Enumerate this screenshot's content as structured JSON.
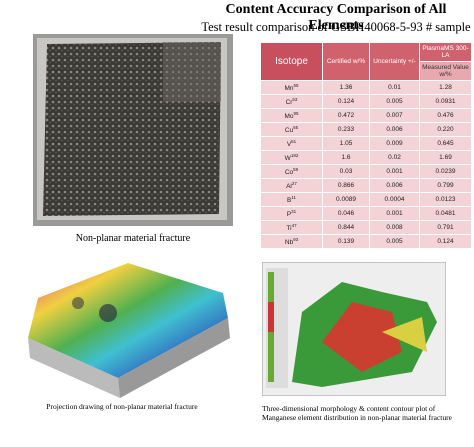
{
  "header": {
    "title": "Content Accuracy Comparison of All Elements",
    "subtitle": "Test result comparison of GSBH40068-5-93 # sample"
  },
  "figures": [
    {
      "caption": "Non-planar material fracture"
    },
    {
      "caption": "Projection drawing of non-planar material fracture"
    },
    {
      "caption": "Three-dimensional morphology & content contour plot of Manganese element distribution in non-planar material fracture"
    }
  ],
  "table": {
    "headers": {
      "isotope": "Isotope",
      "certified": "Certified w/%",
      "uncertainty": "Uncertainty +/-",
      "instrument": "PlasmaMS 300-LA",
      "measured": "Measured Value w/%"
    },
    "rows": [
      [
        "Mn",
        "55",
        "1.36",
        "0.01",
        "1.28"
      ],
      [
        "Cr",
        "53",
        "0.124",
        "0.005",
        "0.0931"
      ],
      [
        "Mo",
        "95",
        "0.472",
        "0.007",
        "0.476"
      ],
      [
        "Cu",
        "65",
        "0.233",
        "0.006",
        "0.220"
      ],
      [
        "V",
        "51",
        "1.05",
        "0.009",
        "0.645"
      ],
      [
        "W",
        "182",
        "1.6",
        "0.02",
        "1.69"
      ],
      [
        "Co",
        "59",
        "0.03",
        "0.001",
        "0.0239"
      ],
      [
        "Al",
        "27",
        "0.866",
        "0.006",
        "0.799"
      ],
      [
        "B",
        "11",
        "0.0089",
        "0.0004",
        "0.0123"
      ],
      [
        "P",
        "31",
        "0.046",
        "0.001",
        "0.0481"
      ],
      [
        "Ti",
        "47",
        "0.844",
        "0.008",
        "0.791"
      ],
      [
        "Nb",
        "93",
        "0.139",
        "0.005",
        "0.124"
      ]
    ]
  }
}
